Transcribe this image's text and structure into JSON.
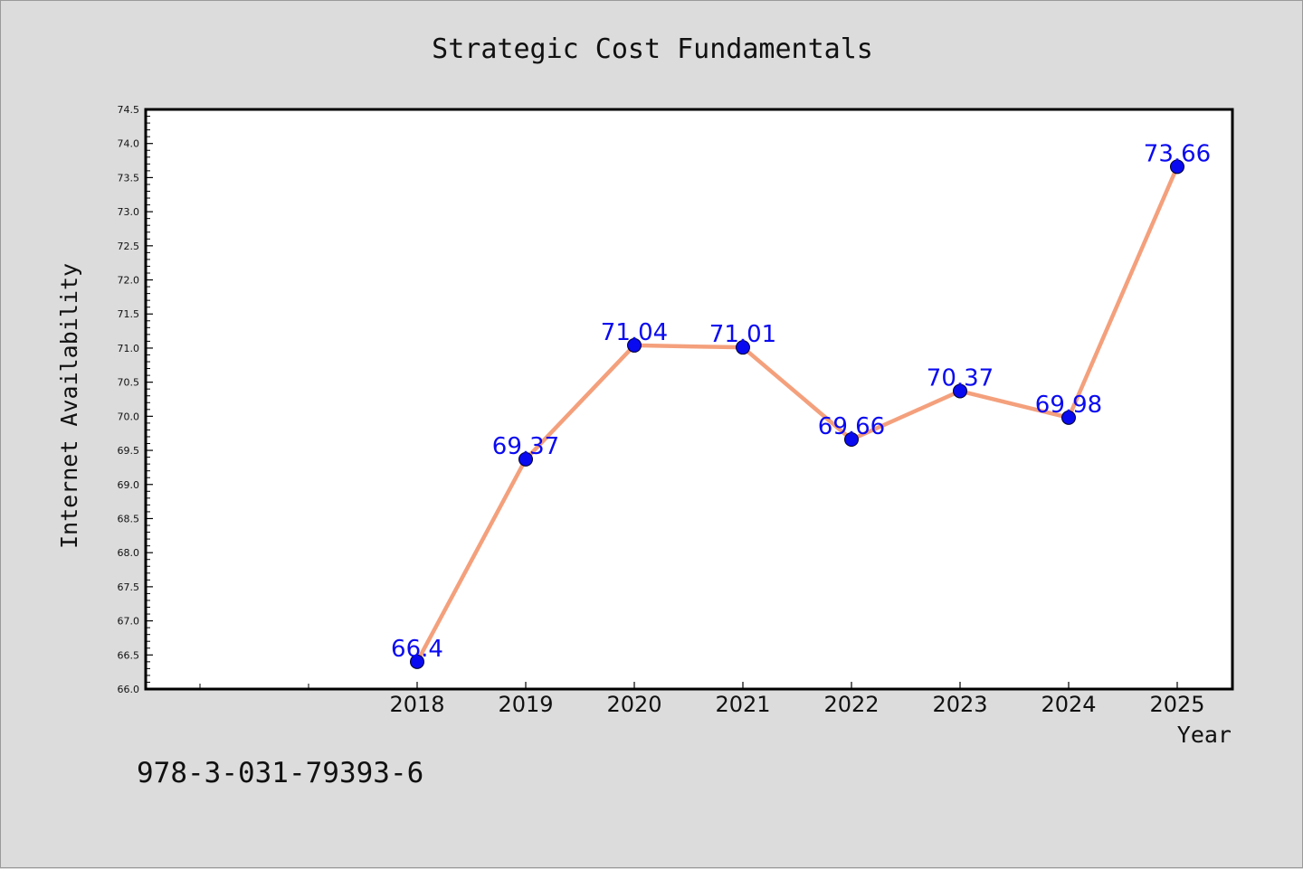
{
  "chart_data": {
    "type": "line",
    "title": "Strategic Cost Fundamentals",
    "xlabel": "Year",
    "ylabel": "Internet Availability",
    "x": [
      "2018",
      "2019",
      "2020",
      "2021",
      "2022",
      "2023",
      "2024",
      "2025"
    ],
    "series": [
      {
        "values": [
          66.4,
          69.37,
          71.04,
          71.01,
          69.66,
          70.37,
          69.98,
          73.66
        ],
        "data_labels": [
          "66.4",
          "69.37",
          "71.04",
          "71.01",
          "69.66",
          "70.37",
          "69.98",
          "73.66"
        ],
        "line_color": "#f4a07c",
        "marker_color": "#0a0af0"
      }
    ],
    "ylim": [
      66.0,
      74.5
    ],
    "yticks": [
      "66.0",
      "66.5",
      "67.0",
      "67.5",
      "68.0",
      "68.5",
      "69.0",
      "69.5",
      "70.0",
      "70.5",
      "71.0",
      "71.5",
      "72.0",
      "72.5",
      "73.0",
      "73.5",
      "74.0",
      "74.5"
    ],
    "grid": false,
    "label_color": "#0a0af0"
  },
  "footer": {
    "isbn": "978-3-031-79393-6"
  },
  "colors": {
    "background": "#dcdcdc",
    "plot_background": "#ffffff",
    "axes": "#000000"
  }
}
